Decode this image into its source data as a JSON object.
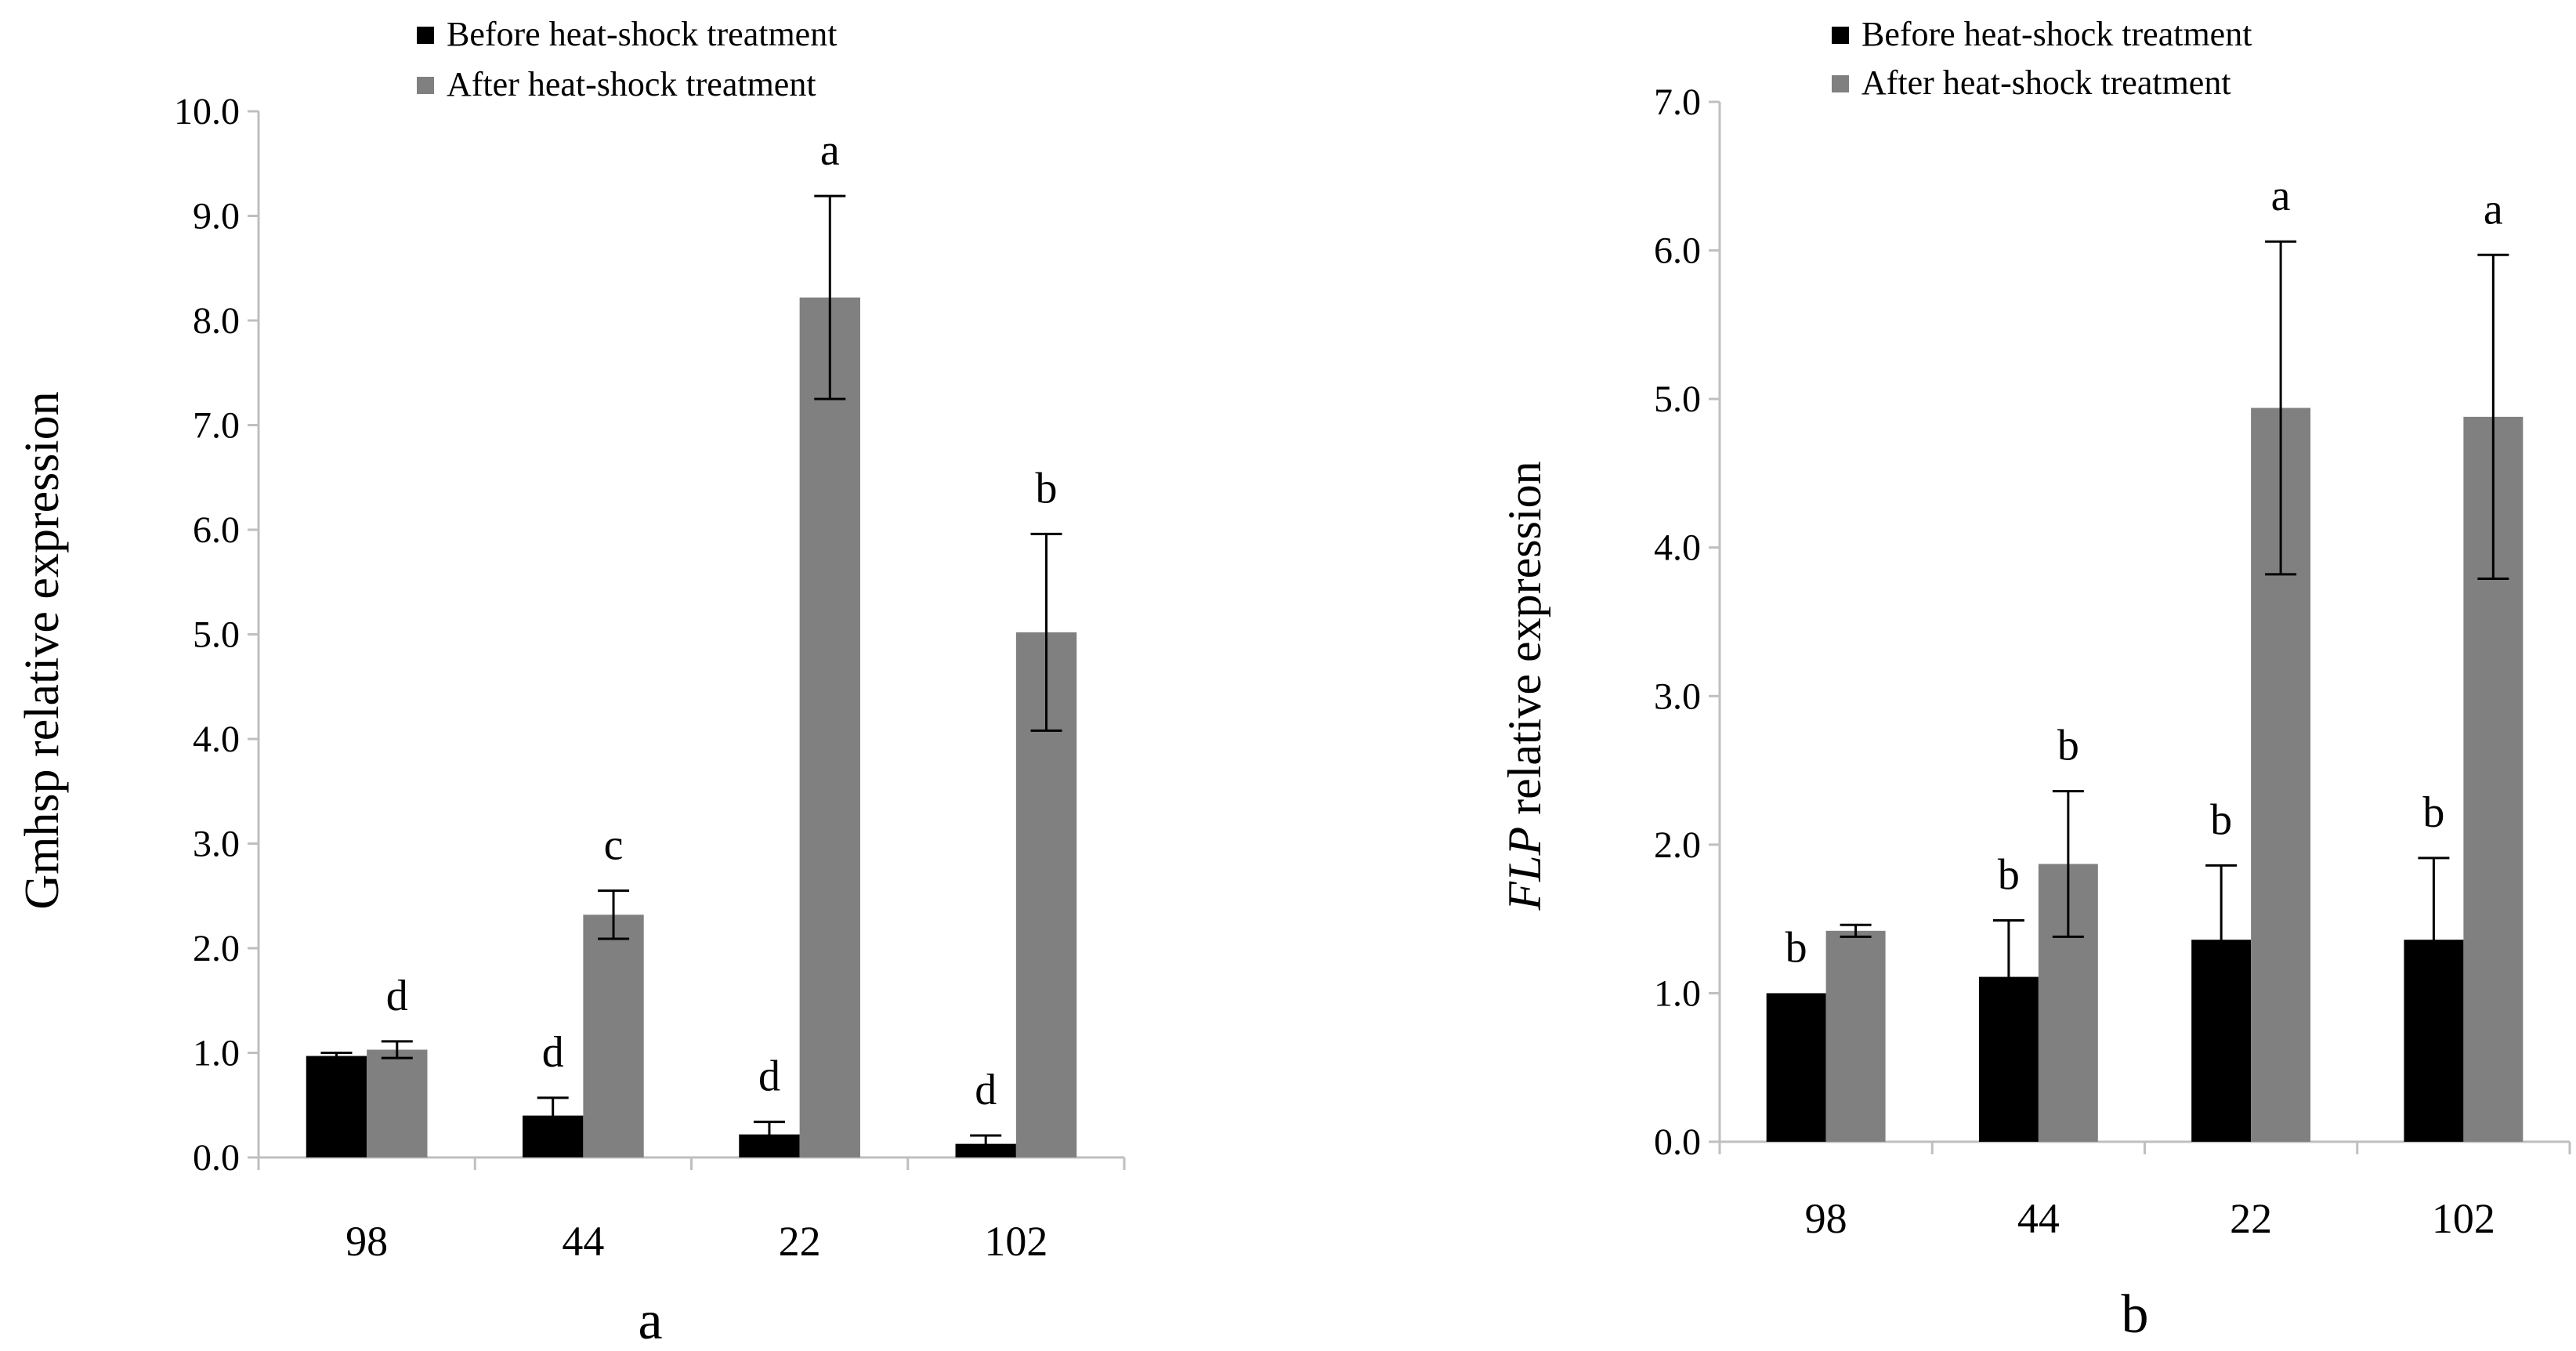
{
  "legend": {
    "before": "Before heat-shock treatment",
    "after": "After heat-shock treatment"
  },
  "colors": {
    "before": "#000000",
    "after": "#808080",
    "axis": "#bfbfbf",
    "errorbar": "#000000"
  },
  "chart_data": [
    {
      "type": "bar",
      "panel_label": "a",
      "ylabel": "Gmhsp relative expression",
      "xlabel": "",
      "categories": [
        "98",
        "44",
        "22",
        "102"
      ],
      "ylim": [
        0,
        10
      ],
      "ytick_step": 1,
      "yticks": [
        "0.0",
        "1.0",
        "2.0",
        "3.0",
        "4.0",
        "5.0",
        "6.0",
        "7.0",
        "8.0",
        "9.0",
        "10.0"
      ],
      "legend_position": "top",
      "grid": false,
      "series": [
        {
          "name": "Before heat-shock treatment",
          "values": [
            0.97,
            0.4,
            0.22,
            0.13
          ],
          "errors": [
            0.03,
            0.17,
            0.12,
            0.08
          ],
          "labels": [
            "",
            "d",
            "d",
            "d"
          ]
        },
        {
          "name": "After heat-shock treatment",
          "values": [
            1.03,
            2.32,
            8.22,
            5.02
          ],
          "errors": [
            0.08,
            0.23,
            0.97,
            0.94
          ],
          "labels": [
            "d",
            "c",
            "a",
            "b"
          ]
        }
      ]
    },
    {
      "type": "bar",
      "panel_label": "b",
      "ylabel": "FLP relative expression",
      "ylabel_italic_part": "FLP",
      "ylabel_rest": "relative expression",
      "xlabel": "",
      "categories": [
        "98",
        "44",
        "22",
        "102"
      ],
      "ylim": [
        0,
        7
      ],
      "ytick_step": 1,
      "yticks": [
        "0.0",
        "1.0",
        "2.0",
        "3.0",
        "4.0",
        "5.0",
        "6.0",
        "7.0"
      ],
      "legend_position": "top",
      "grid": false,
      "series": [
        {
          "name": "Before heat-shock treatment",
          "values": [
            1.0,
            1.11,
            1.36,
            1.36
          ],
          "errors": [
            0.0,
            0.38,
            0.5,
            0.55
          ],
          "labels": [
            "b",
            "b",
            "b",
            "b"
          ]
        },
        {
          "name": "After heat-shock treatment",
          "values": [
            1.42,
            1.87,
            4.94,
            4.88
          ],
          "errors": [
            0.04,
            0.49,
            1.12,
            1.09
          ],
          "labels": [
            "",
            "b",
            "a",
            "a"
          ]
        }
      ]
    }
  ]
}
